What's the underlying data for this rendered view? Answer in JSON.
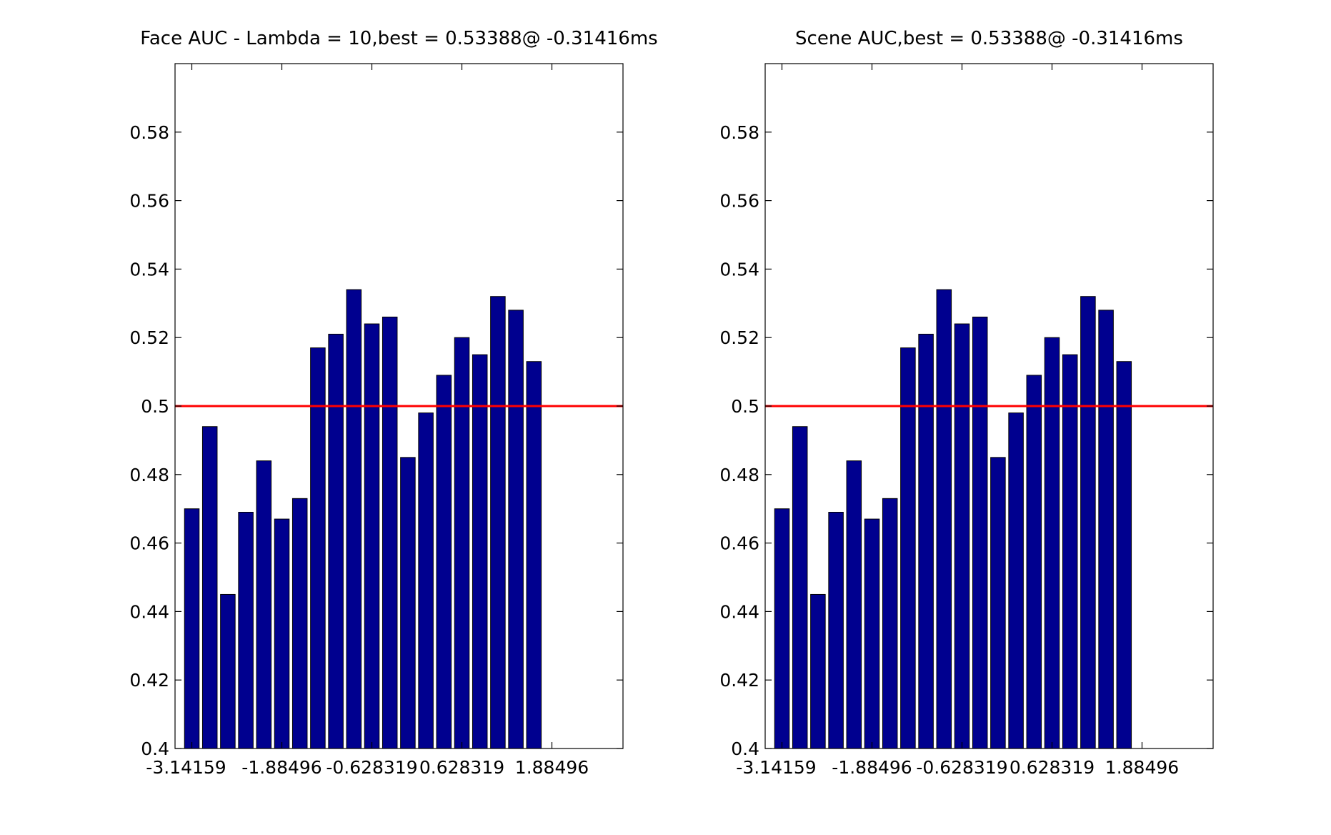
{
  "chart_data": [
    {
      "type": "bar",
      "title": "Face AUC - Lambda = 10,best = 0.53388@ -0.31416ms",
      "xlabel": "",
      "ylabel": "",
      "ylim": [
        0.4,
        0.6
      ],
      "yticks": [
        0.4,
        0.42,
        0.44,
        0.46,
        0.48,
        0.5,
        0.52,
        0.54,
        0.56,
        0.58
      ],
      "ytick_labels": [
        "0.4",
        "0.42",
        "0.44",
        "0.46",
        "0.48",
        "0.5",
        "0.52",
        "0.54",
        "0.56",
        "0.58"
      ],
      "xtick_labels": [
        "-3.14159",
        "-1.88496",
        "-0.628319",
        "0.628319",
        "1.88496"
      ],
      "values": [
        0.47,
        0.494,
        0.445,
        0.469,
        0.484,
        0.467,
        0.473,
        0.517,
        0.521,
        0.534,
        0.524,
        0.526,
        0.485,
        0.498,
        0.509,
        0.52,
        0.515,
        0.532,
        0.528,
        0.513
      ],
      "bar_color": "#00008F",
      "reference_line": {
        "y": 0.5,
        "color": "#FF0000"
      },
      "grid": false
    },
    {
      "type": "bar",
      "title": "Scene AUC,best = 0.53388@ -0.31416ms",
      "xlabel": "",
      "ylabel": "",
      "ylim": [
        0.4,
        0.6
      ],
      "yticks": [
        0.4,
        0.42,
        0.44,
        0.46,
        0.48,
        0.5,
        0.52,
        0.54,
        0.56,
        0.58
      ],
      "ytick_labels": [
        "0.4",
        "0.42",
        "0.44",
        "0.46",
        "0.48",
        "0.5",
        "0.52",
        "0.54",
        "0.56",
        "0.58"
      ],
      "xtick_labels": [
        "-3.14159",
        "-1.88496",
        "-0.628319",
        "0.628319",
        "1.88496"
      ],
      "values": [
        0.47,
        0.494,
        0.445,
        0.469,
        0.484,
        0.467,
        0.473,
        0.517,
        0.521,
        0.534,
        0.524,
        0.526,
        0.485,
        0.498,
        0.509,
        0.52,
        0.515,
        0.532,
        0.528,
        0.513
      ],
      "bar_color": "#00008F",
      "reference_line": {
        "y": 0.5,
        "color": "#FF0000"
      },
      "grid": false
    }
  ]
}
